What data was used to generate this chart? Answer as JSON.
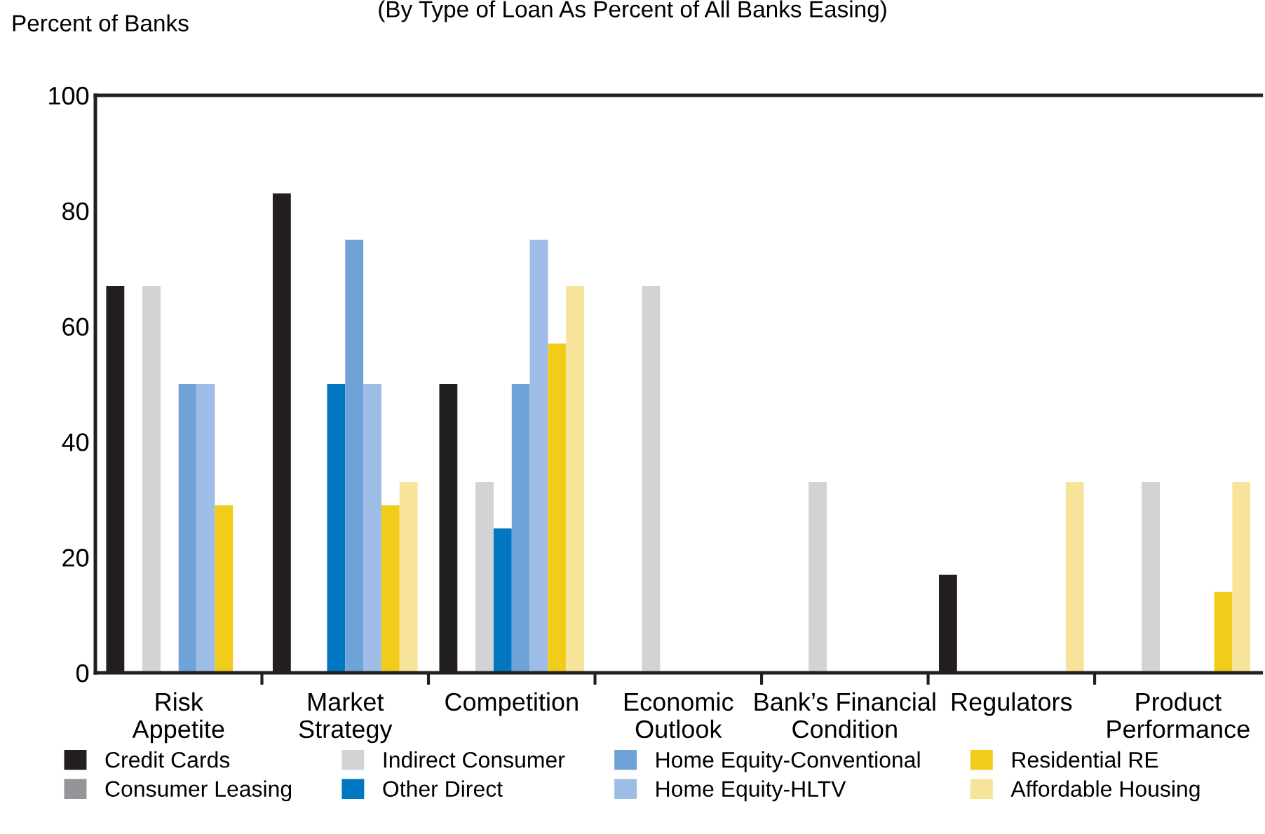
{
  "chart_data": {
    "type": "bar",
    "subtitle": "(By Type of Loan As Percent of All Banks Easing)",
    "ylabel": "Percent of Banks",
    "categories": [
      "Risk\nAppetite",
      "Market\nStrategy",
      "Competition",
      "Economic\nOutlook",
      "Bank’s Financial\nCondition",
      "Regulators",
      "Product\nPerformance"
    ],
    "series": [
      {
        "name": "Credit Cards",
        "color": "#231f20",
        "values": [
          67,
          83,
          50,
          0,
          0,
          17,
          0
        ]
      },
      {
        "name": "Consumer Leasing",
        "color": "#939598",
        "values": [
          0,
          0,
          0,
          0,
          0,
          0,
          0
        ]
      },
      {
        "name": "Indirect Consumer",
        "color": "#d1d3d4",
        "values": [
          67,
          0,
          33,
          67,
          33,
          0,
          33
        ]
      },
      {
        "name": "Other Direct",
        "color": "#0077c0",
        "values": [
          0,
          50,
          25,
          0,
          0,
          0,
          0
        ]
      },
      {
        "name": "Home Equity-Conventional",
        "color": "#6fa3d8",
        "values": [
          50,
          75,
          50,
          0,
          0,
          0,
          0
        ]
      },
      {
        "name": "Home Equity-HLTV",
        "color": "#9dbde6",
        "values": [
          50,
          50,
          75,
          0,
          0,
          0,
          0
        ]
      },
      {
        "name": "Residential RE",
        "color": "#f2cc1a",
        "values": [
          29,
          29,
          57,
          0,
          0,
          0,
          14
        ]
      },
      {
        "name": "Affordable Housing",
        "color": "#f7e39a",
        "values": [
          0,
          33,
          67,
          0,
          0,
          33,
          33
        ]
      }
    ],
    "ylim": [
      0,
      100
    ],
    "yticks": [
      0,
      20,
      40,
      60,
      80,
      100
    ],
    "grid": false,
    "legend": "bottom"
  }
}
